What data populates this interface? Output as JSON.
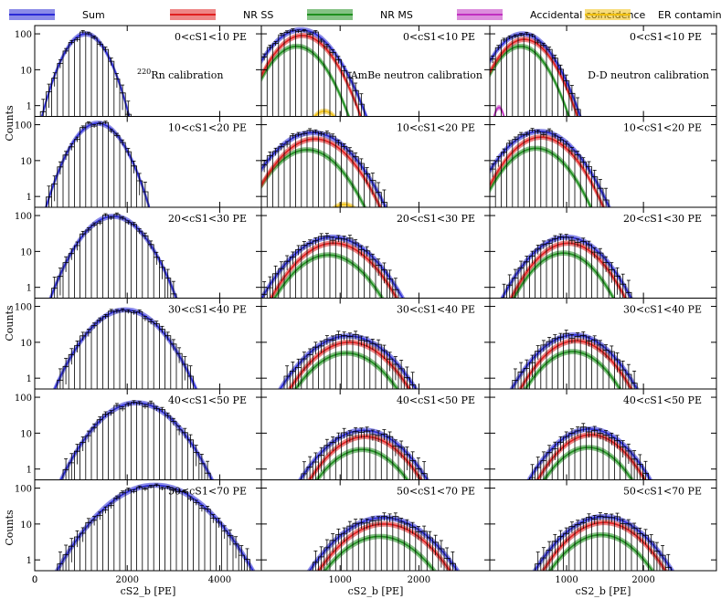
{
  "legend": [
    {
      "name": "Sum",
      "color": "#2b2bd6"
    },
    {
      "name": "NR SS",
      "color": "#e02020"
    },
    {
      "name": "NR MS",
      "color": "#1f8f1f"
    },
    {
      "name": "Accidental coincidence",
      "color": "#c030c0"
    },
    {
      "name": "ER contamination",
      "color": "#f0c010"
    }
  ],
  "axis_labels": {
    "y": "Counts",
    "x": "cS2_b [PE]"
  },
  "columns": [
    {
      "annotation": "220Rn calibration",
      "annotation_sup": "220",
      "annotation_rest": "Rn calibration",
      "xlim": [
        0,
        4900
      ],
      "xticks": [
        0,
        2000,
        4000
      ]
    },
    {
      "annotation": "AmBe neutron calibration",
      "xlim": [
        0,
        2900
      ],
      "xticks": [
        1000,
        2000
      ]
    },
    {
      "annotation": "D-D neutron calibration",
      "xlim": [
        0,
        2950
      ],
      "xticks": [
        1000,
        2000
      ]
    }
  ],
  "rows": [
    {
      "bin": "0<cS1<10 PE"
    },
    {
      "bin": "10<cS1<20 PE"
    },
    {
      "bin": "20<cS1<30 PE"
    },
    {
      "bin": "30<cS1<40 PE"
    },
    {
      "bin": "40<cS1<50 PE"
    },
    {
      "bin": "50<cS1<70 PE"
    }
  ],
  "chart_data": {
    "type": "line",
    "yscale": "log",
    "ylim": [
      0.5,
      170
    ],
    "yticks": [
      1,
      10,
      100
    ],
    "ytick_labels": [
      "1",
      "10",
      "100"
    ],
    "panels": [
      {
        "col": 0,
        "row": 0,
        "sum": {
          "amp": 100,
          "mu": 1100,
          "sigma": 290
        }
      },
      {
        "col": 0,
        "row": 1,
        "sum": {
          "amp": 110,
          "mu": 1360,
          "sigma": 340
        }
      },
      {
        "col": 0,
        "row": 2,
        "sum": {
          "amp": 95,
          "mu": 1700,
          "sigma": 420
        }
      },
      {
        "col": 0,
        "row": 3,
        "sum": {
          "amp": 80,
          "mu": 1960,
          "sigma": 480
        }
      },
      {
        "col": 0,
        "row": 4,
        "sum": {
          "amp": 70,
          "mu": 2200,
          "sigma": 520
        }
      },
      {
        "col": 0,
        "row": 5,
        "sum": {
          "amp": 120,
          "mu": 2600,
          "sigma": 640
        }
      },
      {
        "col": 1,
        "row": 0,
        "sum": {
          "amp": 130,
          "mu": 500,
          "sigma": 250
        },
        "ss": {
          "amp": 90,
          "mu": 520,
          "sigma": 230
        },
        "ms": {
          "amp": 45,
          "mu": 450,
          "sigma": 220
        },
        "er": {
          "amp": 0.7,
          "mu": 800,
          "sigma": 150
        }
      },
      {
        "col": 1,
        "row": 1,
        "sum": {
          "amp": 60,
          "mu": 650,
          "sigma": 300
        },
        "ss": {
          "amp": 40,
          "mu": 680,
          "sigma": 280
        },
        "ms": {
          "amp": 20,
          "mu": 580,
          "sigma": 270
        },
        "er": {
          "amp": 0.6,
          "mu": 1050,
          "sigma": 180
        }
      },
      {
        "col": 1,
        "row": 2,
        "sum": {
          "amp": 25,
          "mu": 900,
          "sigma": 320
        },
        "ss": {
          "amp": 17,
          "mu": 920,
          "sigma": 300
        },
        "ms": {
          "amp": 8,
          "mu": 850,
          "sigma": 290
        }
      },
      {
        "col": 1,
        "row": 3,
        "sum": {
          "amp": 15,
          "mu": 1100,
          "sigma": 330
        },
        "ss": {
          "amp": 10,
          "mu": 1120,
          "sigma": 310
        },
        "ms": {
          "amp": 5,
          "mu": 1080,
          "sigma": 300
        }
      },
      {
        "col": 1,
        "row": 4,
        "sum": {
          "amp": 12,
          "mu": 1300,
          "sigma": 320
        },
        "ss": {
          "amp": 8,
          "mu": 1320,
          "sigma": 300
        },
        "ms": {
          "amp": 3.5,
          "mu": 1280,
          "sigma": 290
        }
      },
      {
        "col": 1,
        "row": 5,
        "sum": {
          "amp": 15,
          "mu": 1550,
          "sigma": 360
        },
        "ss": {
          "amp": 10,
          "mu": 1560,
          "sigma": 340
        },
        "ms": {
          "amp": 4.5,
          "mu": 1500,
          "sigma": 330
        }
      },
      {
        "col": 2,
        "row": 0,
        "sum": {
          "amp": 100,
          "mu": 430,
          "sigma": 230
        },
        "ss": {
          "amp": 70,
          "mu": 450,
          "sigma": 220
        },
        "ms": {
          "amp": 45,
          "mu": 400,
          "sigma": 210
        },
        "acc": {
          "amp": 0.9,
          "mu": 120,
          "sigma": 60
        }
      },
      {
        "col": 2,
        "row": 1,
        "sum": {
          "amp": 65,
          "mu": 650,
          "sigma": 290
        },
        "ss": {
          "amp": 45,
          "mu": 670,
          "sigma": 270
        },
        "ms": {
          "amp": 22,
          "mu": 600,
          "sigma": 260
        }
      },
      {
        "col": 2,
        "row": 2,
        "sum": {
          "amp": 25,
          "mu": 1000,
          "sigma": 300
        },
        "ss": {
          "amp": 17,
          "mu": 1020,
          "sigma": 280
        },
        "ms": {
          "amp": 9,
          "mu": 960,
          "sigma": 270
        }
      },
      {
        "col": 2,
        "row": 3,
        "sum": {
          "amp": 16,
          "mu": 1100,
          "sigma": 310
        },
        "ss": {
          "amp": 11,
          "mu": 1120,
          "sigma": 290
        },
        "ms": {
          "amp": 5.5,
          "mu": 1080,
          "sigma": 280
        }
      },
      {
        "col": 2,
        "row": 4,
        "sum": {
          "amp": 13,
          "mu": 1300,
          "sigma": 310
        },
        "ss": {
          "amp": 9,
          "mu": 1320,
          "sigma": 290
        },
        "ms": {
          "amp": 4,
          "mu": 1280,
          "sigma": 280
        }
      },
      {
        "col": 2,
        "row": 5,
        "sum": {
          "amp": 16,
          "mu": 1480,
          "sigma": 340
        },
        "ss": {
          "amp": 11,
          "mu": 1490,
          "sigma": 320
        },
        "ms": {
          "amp": 5,
          "mu": 1450,
          "sigma": 310
        }
      }
    ]
  }
}
